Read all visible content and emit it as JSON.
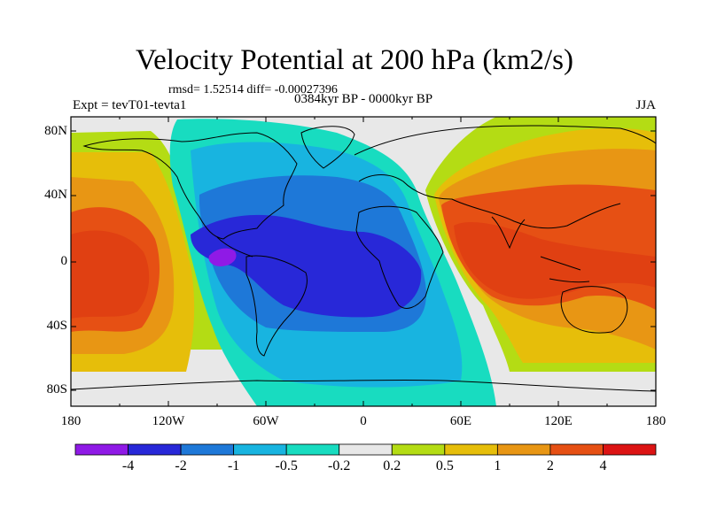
{
  "title": "Velocity Potential at 200 hPa (km2/s)",
  "stats_line": "rmsd= 1.52514 diff= -0.00027396",
  "experiment": "Expt = tevT01-tevta1",
  "period": "0384kyr BP - 0000kyr BP",
  "season": "JJA",
  "y_axis": {
    "labels": [
      "80N",
      "40N",
      "0",
      "40S",
      "80S"
    ]
  },
  "x_axis": {
    "labels": [
      "180",
      "120W",
      "60W",
      "0",
      "60E",
      "120E",
      "180"
    ]
  },
  "colorbar": {
    "colors": [
      "#8f1ae6",
      "#2828d8",
      "#1e78d8",
      "#18b4e0",
      "#18dcc0",
      "#e8e8e8",
      "#b4dc14",
      "#e6be0a",
      "#e89614",
      "#e65014",
      "#dc1414"
    ],
    "labels": [
      "-4",
      "-2",
      "-1",
      "-0.5",
      "-0.2",
      "0.2",
      "0.5",
      "1",
      "2",
      "4"
    ]
  },
  "map_colors": {
    "background": "#e8e8e8",
    "coast": "#000000"
  }
}
